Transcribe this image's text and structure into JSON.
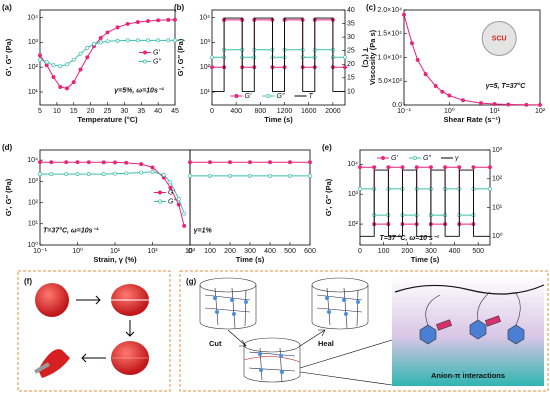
{
  "chart_data": [
    {
      "panel": "(a)",
      "type": "line",
      "xlabel": "Temperature (°C)",
      "ylabel": "G′, G″ (Pa)",
      "xlim": [
        5,
        45
      ],
      "xticks": [
        5,
        10,
        15,
        20,
        25,
        30,
        35,
        40,
        45
      ],
      "ylog": true,
      "ylim": [
        3,
        20000
      ],
      "yticks": [
        {
          "value": 10,
          "label": "10¹"
        },
        {
          "value": 100,
          "label": "10²"
        },
        {
          "value": 1000,
          "label": "10³"
        },
        {
          "value": 10000,
          "label": "10⁴"
        }
      ],
      "legend": "center right",
      "annotation": "γ=5%, ω=10s⁻¹",
      "x": [
        5,
        7,
        9,
        11,
        13,
        15,
        17,
        19,
        21,
        23,
        25,
        28,
        31,
        34,
        37,
        40,
        43,
        45
      ],
      "series": [
        {
          "name": "G′",
          "color": "#e8247b",
          "marker": true,
          "values": [
            300,
            120,
            40,
            16,
            14,
            25,
            80,
            250,
            700,
            1500,
            2500,
            4000,
            5500,
            6500,
            7200,
            7700,
            8000,
            8100
          ]
        },
        {
          "name": "G″",
          "color": "#3cbfae",
          "marker": true,
          "values": [
            200,
            160,
            120,
            110,
            130,
            200,
            350,
            600,
            850,
            1000,
            1100,
            1150,
            1200,
            1200,
            1200,
            1200,
            1200,
            1200
          ]
        }
      ]
    },
    {
      "panel": "(b)",
      "type": "line",
      "xlabel": "Time (s)",
      "ylabel": "G′, G″ (Pa)",
      "y2label": "T (°C)",
      "xlim": [
        0,
        2200
      ],
      "xticks": [
        0,
        400,
        800,
        1200,
        1600,
        2000
      ],
      "ylog": true,
      "ylim": [
        3,
        20000
      ],
      "yticks": [
        {
          "value": 10,
          "label": "10¹"
        },
        {
          "value": 100,
          "label": "10²"
        },
        {
          "value": 1000,
          "label": "10³"
        },
        {
          "value": 10000,
          "label": "10⁴"
        }
      ],
      "y2lim": [
        5,
        40
      ],
      "y2ticks": [
        10,
        15,
        20,
        25,
        30,
        35,
        40
      ],
      "legend": "lower center",
      "x": [
        0,
        200,
        200,
        500,
        500,
        700,
        700,
        1000,
        1000,
        1200,
        1200,
        1500,
        1500,
        1700,
        1700,
        2000,
        2000,
        2200
      ],
      "series": [
        {
          "name": "G′",
          "color": "#e8247b",
          "marker": true,
          "values": [
            100,
            100,
            8000,
            8000,
            100,
            100,
            8000,
            8000,
            100,
            100,
            8000,
            8000,
            100,
            100,
            8000,
            8000,
            100,
            100
          ]
        },
        {
          "name": "G″",
          "color": "#3cbfae",
          "marker": true,
          "values": [
            250,
            250,
            500,
            500,
            250,
            250,
            500,
            500,
            250,
            250,
            500,
            500,
            250,
            250,
            500,
            500,
            250,
            250
          ]
        },
        {
          "name": "T",
          "color": "#000000",
          "axis": "y2",
          "values": [
            10,
            10,
            37,
            37,
            10,
            10,
            37,
            37,
            10,
            10,
            37,
            37,
            10,
            10,
            37,
            37,
            10,
            10
          ]
        }
      ]
    },
    {
      "panel": "(c)",
      "type": "line",
      "xlabel": "Shear Rate (s⁻¹)",
      "ylabel": "Viscosity (Pa s)",
      "xlog": true,
      "xlim": [
        0.1,
        100
      ],
      "xticks": [
        {
          "value": 0.1,
          "label": "10⁻¹"
        },
        {
          "value": 1,
          "label": "10⁰"
        },
        {
          "value": 10,
          "label": "10¹"
        },
        {
          "value": 100,
          "label": "10²"
        }
      ],
      "ylim": [
        0,
        20000
      ],
      "yticks": [
        {
          "value": 0,
          "label": "0.0"
        },
        {
          "value": 5000,
          "label": "5.0×10³"
        },
        {
          "value": 10000,
          "label": "1.0×10⁴"
        },
        {
          "value": 15000,
          "label": "1.5×10⁴"
        },
        {
          "value": 20000,
          "label": "2.0×10⁴"
        }
      ],
      "annotation": "γ=5, T=37°C",
      "inset_text": "SCU",
      "x": [
        0.1,
        0.15,
        0.2,
        0.3,
        0.5,
        0.7,
        1,
        2,
        5,
        10,
        20,
        50,
        100
      ],
      "series": [
        {
          "color": "#e8247b",
          "marker": true,
          "values": [
            19000,
            13000,
            9500,
            6500,
            4000,
            2800,
            2000,
            1000,
            400,
            200,
            100,
            40,
            20
          ]
        }
      ]
    },
    {
      "panel": "(d)",
      "type": "line",
      "xlabel": "Strain, γ (%)",
      "ylabel": "G′, G″ (Pa)",
      "xlog": true,
      "xlim": [
        0.1,
        1000
      ],
      "xticks": [
        {
          "value": 0.1,
          "label": "10⁻¹"
        },
        {
          "value": 1,
          "label": "10⁰"
        },
        {
          "value": 10,
          "label": "10¹"
        },
        {
          "value": 100,
          "label": "10²"
        },
        {
          "value": 1000,
          "label": "10³"
        }
      ],
      "ylog": true,
      "ylim": [
        1,
        30000
      ],
      "yticks": [
        {
          "value": 1,
          "label": "10⁰"
        },
        {
          "value": 10,
          "label": "10¹"
        },
        {
          "value": 100,
          "label": "10²"
        },
        {
          "value": 1000,
          "label": "10³"
        },
        {
          "value": 10000,
          "label": "10⁴"
        }
      ],
      "legend": "center right",
      "annotation": "T=37°C, ω=10s⁻¹",
      "x": [
        0.1,
        0.2,
        0.5,
        1,
        2,
        5,
        10,
        20,
        50,
        100,
        200,
        300,
        500,
        700
      ],
      "series": [
        {
          "name": "G′",
          "color": "#e8247b",
          "marker": true,
          "values": [
            8000,
            8000,
            8000,
            8000,
            8000,
            7900,
            7800,
            7500,
            6500,
            4500,
            1500,
            500,
            80,
            8
          ]
        },
        {
          "name": "G″",
          "color": "#3cbfae",
          "marker": true,
          "values": [
            2200,
            2200,
            2200,
            2200,
            2200,
            2200,
            2300,
            2400,
            2600,
            2800,
            2000,
            900,
            150,
            30
          ]
        }
      ]
    },
    {
      "type": "line",
      "xlabel": "Time (s)",
      "xlim": [
        0,
        600
      ],
      "xticks": [
        0,
        100,
        200,
        300,
        400,
        500,
        600
      ],
      "ylog": true,
      "ylim": [
        1,
        30000
      ],
      "annotation": "γ=1%",
      "x": [
        0,
        100,
        200,
        300,
        400,
        500,
        600
      ],
      "series": [
        {
          "color": "#e8247b",
          "marker": true,
          "values": [
            8000,
            8000,
            8000,
            8000,
            8000,
            8000,
            8000
          ]
        },
        {
          "color": "#3cbfae",
          "marker": true,
          "values": [
            1800,
            1800,
            1800,
            1800,
            1800,
            1800,
            1800
          ]
        }
      ]
    },
    {
      "panel": "(e)",
      "type": "line",
      "xlabel": "Time (s)",
      "ylabel": "G′, G″ (Pa)",
      "xlim": [
        0,
        550
      ],
      "xticks": [
        0,
        100,
        200,
        300,
        400,
        500
      ],
      "ylog": true,
      "ylim": [
        20,
        30000
      ],
      "yticks": [
        {
          "value": 100,
          "label": "10²"
        },
        {
          "value": 1000,
          "label": "10³"
        },
        {
          "value": 10000,
          "label": "10⁴"
        }
      ],
      "y2log": true,
      "y2lim": [
        0.5,
        1000
      ],
      "y2ticks": [
        {
          "value": 1,
          "label": "10⁰"
        },
        {
          "value": 10,
          "label": "10¹"
        },
        {
          "value": 100,
          "label": "10²"
        },
        {
          "value": 1000,
          "label": "10³"
        }
      ],
      "legend": "upper center",
      "annotation": "T=37 °C, ω=10 s⁻¹",
      "x": [
        0,
        60,
        60,
        120,
        120,
        180,
        180,
        240,
        240,
        300,
        300,
        360,
        360,
        420,
        420,
        480,
        480,
        550
      ],
      "series": [
        {
          "name": "G′",
          "color": "#e8247b",
          "marker": true,
          "values": [
            8000,
            8000,
            100,
            100,
            8000,
            8000,
            100,
            100,
            8000,
            8000,
            100,
            100,
            8000,
            8000,
            100,
            100,
            8000,
            8000
          ]
        },
        {
          "name": "G″",
          "color": "#3cbfae",
          "marker": true,
          "values": [
            1500,
            1500,
            200,
            200,
            1500,
            1500,
            200,
            200,
            1500,
            1500,
            200,
            200,
            1500,
            1500,
            200,
            200,
            1500,
            1500
          ]
        },
        {
          "name": "γ",
          "color": "#000000",
          "axis": "y2",
          "values": [
            1,
            1,
            200,
            200,
            1,
            1,
            200,
            200,
            1,
            1,
            200,
            200,
            1,
            1,
            200,
            200,
            1,
            1
          ]
        }
      ]
    }
  ],
  "figure_f": {
    "panel": "(f)"
  },
  "figure_g": {
    "panel": "(g)",
    "labels": [
      "Cut",
      "Heal",
      "Anion-π interactions"
    ]
  }
}
